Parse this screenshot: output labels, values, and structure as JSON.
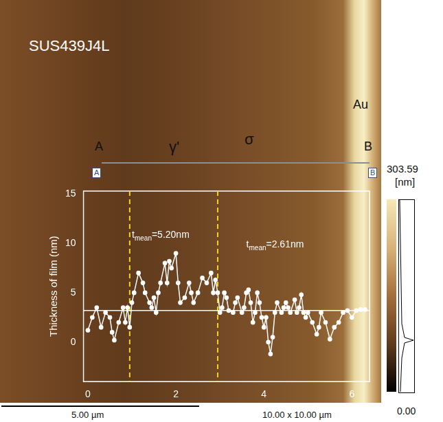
{
  "chart_data": {
    "type": "scatter",
    "marker": "circle",
    "line_style": "solid",
    "color": "#ffffff",
    "y_label": "Thickness of film (nm)",
    "x": [
      0,
      0.1,
      0.2,
      0.3,
      0.4,
      0.5,
      0.55,
      0.6,
      0.7,
      0.8,
      0.85,
      0.9,
      0.95,
      1.0,
      1.05,
      1.15,
      1.25,
      1.3,
      1.4,
      1.45,
      1.5,
      1.55,
      1.6,
      1.65,
      1.75,
      1.8,
      1.85,
      1.9,
      2.0,
      2.05,
      2.1,
      2.2,
      2.3,
      2.35,
      2.4,
      2.5,
      2.6,
      2.7,
      2.8,
      2.85,
      2.9,
      2.95,
      3.0,
      3.05,
      3.1,
      3.15,
      3.2,
      3.3,
      3.35,
      3.4,
      3.5,
      3.55,
      3.6,
      3.65,
      3.7,
      3.75,
      3.8,
      3.85,
      3.9,
      3.95,
      4.0,
      4.05,
      4.1,
      4.15,
      4.2,
      4.25,
      4.3,
      4.4,
      4.45,
      4.5,
      4.55,
      4.6,
      4.7,
      4.75,
      4.8,
      4.85,
      4.9,
      4.95,
      5.0,
      5.1,
      5.2,
      5.25,
      5.3,
      5.4,
      5.5,
      5.6,
      5.7,
      5.8,
      5.9,
      6.0,
      6.1,
      6.2,
      6.3
    ],
    "values": [
      1.2,
      2.5,
      3.5,
      1.5,
      3,
      2.5,
      1,
      0.2,
      2,
      3.5,
      2,
      3.5,
      1.5,
      4,
      5,
      7,
      6,
      5,
      4,
      3.5,
      4.5,
      3,
      5,
      6,
      8,
      6,
      8.2,
      7.5,
      9,
      6,
      4,
      4.5,
      6,
      5,
      4,
      5,
      6.5,
      6,
      7,
      5,
      6.3,
      5,
      3,
      3.5,
      5,
      4.5,
      3.2,
      3,
      4,
      4.5,
      3,
      3.5,
      5,
      5.3,
      4,
      2,
      3,
      5,
      4,
      2.5,
      1.5,
      2.5,
      0,
      -1.2,
      0.5,
      3,
      4,
      3,
      3.5,
      4,
      3.5,
      3,
      4.3,
      3,
      3.5,
      4.8,
      3,
      2.5,
      3,
      2,
      0.8,
      1.5,
      3,
      2,
      0.3,
      1.5,
      2,
      3,
      3.2,
      2.5,
      3.2,
      3.3,
      3.3
    ],
    "xlim": [
      -0.1,
      6.4
    ],
    "xticks": [
      0,
      2,
      4,
      6
    ],
    "ylim": [
      -4,
      15.3
    ],
    "yticks": [
      0,
      5,
      10,
      15
    ],
    "grid": false,
    "region_bounds": [
      0.95,
      2.95
    ],
    "mean_line": 3.2,
    "annotations": [
      {
        "base": "t",
        "sub": "mean",
        "rest": "=5.20nm",
        "x": 1.0,
        "y": 10.6
      },
      {
        "base": "t",
        "sub": "mean",
        "rest": "=2.61nm",
        "x": 3.6,
        "y": 9.6
      }
    ]
  },
  "image": {
    "sample": "SUS439J4L",
    "electrode": "Au",
    "phases": [
      "γ'",
      "σ"
    ],
    "profile_start": "A",
    "profile_end": "B",
    "colorbar": {
      "max": {
        "value": 303.59,
        "label": "303.59"
      },
      "min": {
        "value": 0,
        "label": "0.00"
      },
      "unit": "[nm]"
    },
    "scale_bar": "5.00 µm",
    "scan_size": "10.00 x 10.00 µm"
  }
}
